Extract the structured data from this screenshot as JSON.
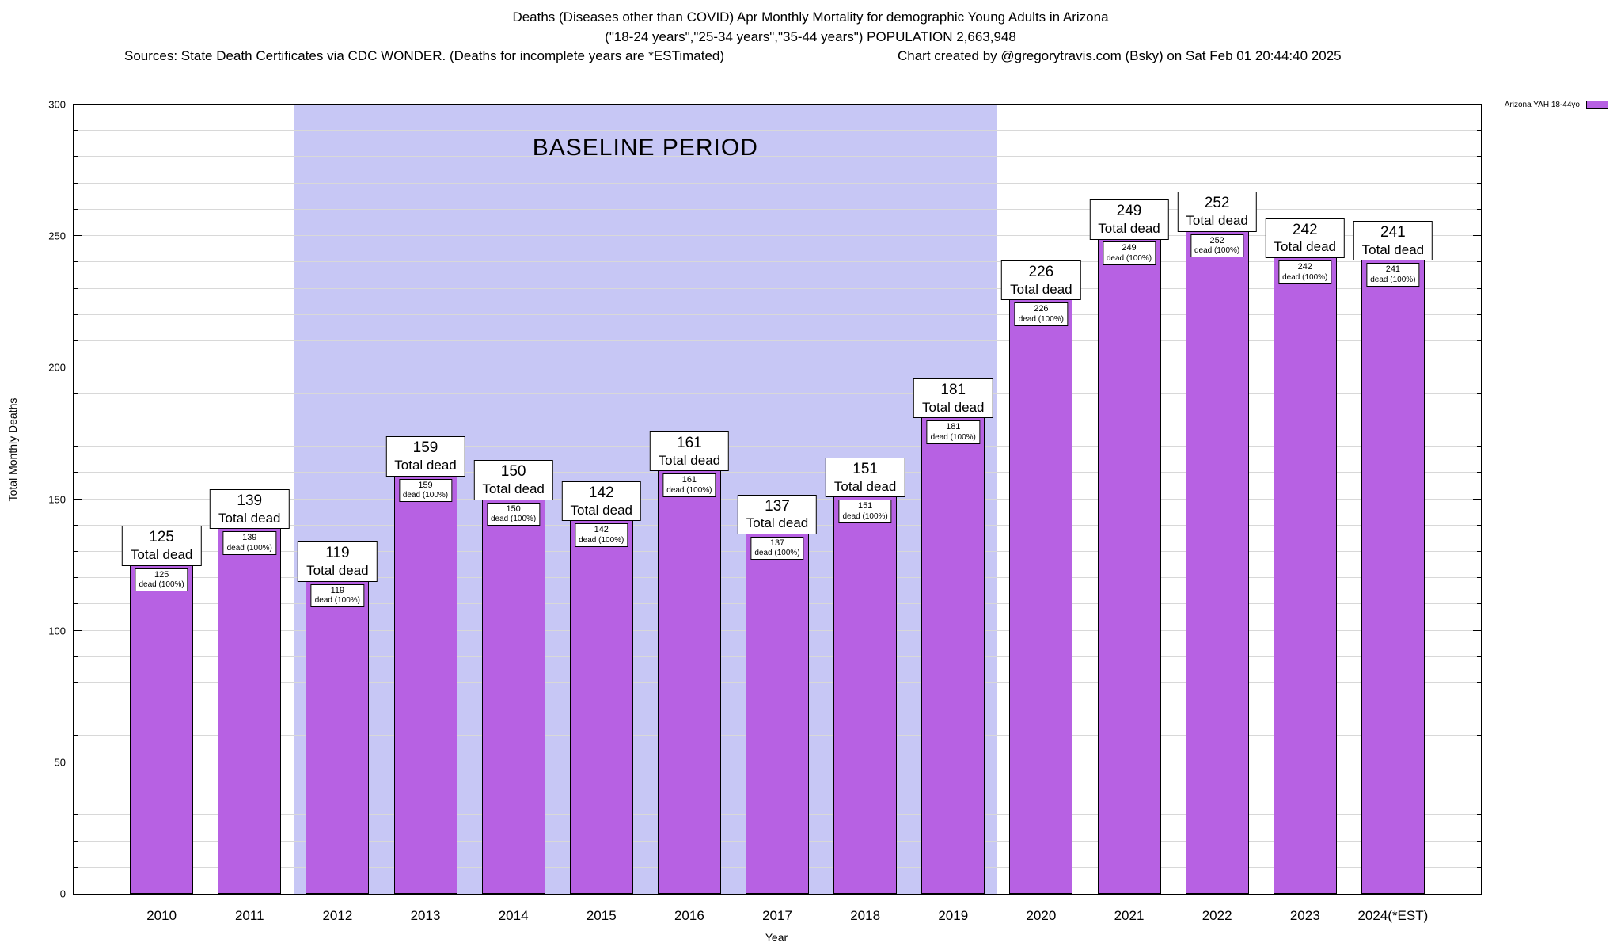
{
  "header": {
    "title_line1": "Deaths (Diseases other than COVID) Apr Monthly Mortality for demographic Young Adults in Arizona",
    "title_line2": "(\"18-24 years\",\"25-34 years\",\"35-44 years\") POPULATION 2,663,948",
    "sources": "Sources: State Death Certificates via CDC WONDER. (Deaths for incomplete years are *ESTimated)",
    "credit": "Chart created by @gregorytravis.com (Bsky) on Sat Feb 01 20:44:40 2025"
  },
  "chart_data": {
    "type": "bar",
    "title": "Deaths (Diseases other than COVID) Apr Monthly Mortality for demographic Young Adults in Arizona",
    "subtitle": "(\"18-24 years\",\"25-34 years\",\"35-44 years\") POPULATION 2,663,948",
    "xlabel": "Year",
    "ylabel": "Total Monthly Deaths",
    "ylim": [
      0,
      300
    ],
    "ytick_interval": 50,
    "grid_interval": 10,
    "grid": true,
    "legend_position": "top-right-outside",
    "categories": [
      "2010",
      "2011",
      "2012",
      "2013",
      "2014",
      "2015",
      "2016",
      "2017",
      "2018",
      "2019",
      "2020",
      "2021",
      "2022",
      "2023",
      "2024(*EST)"
    ],
    "values": [
      125,
      139,
      119,
      159,
      150,
      142,
      161,
      137,
      151,
      181,
      226,
      249,
      252,
      242,
      241
    ],
    "bar_label_suffix": "Total dead",
    "bar_inner_label_suffix": "dead (100%)",
    "baseline": {
      "label": "BASELINE PERIOD",
      "start_category": "2012",
      "end_category": "2019"
    },
    "legend": {
      "label": "Arizona YAH 18-44yo"
    },
    "colors": {
      "bar": "#b761e3",
      "baseline_region": "#c7c7f5",
      "grid": "#d8d8d8",
      "box_border": "#000000"
    }
  }
}
